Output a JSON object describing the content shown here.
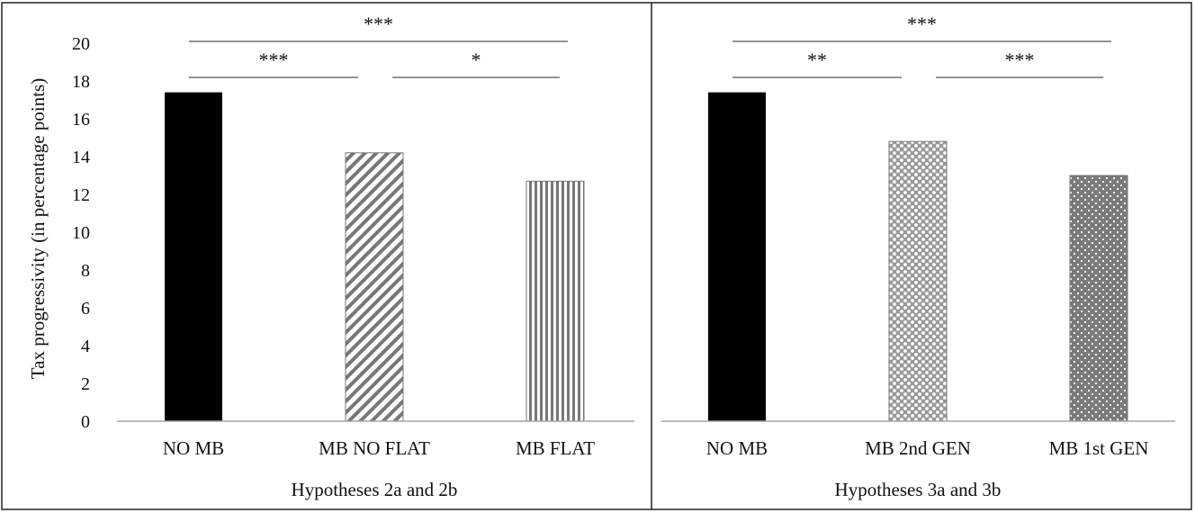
{
  "chart_data": {
    "type": "bar",
    "ylabel": "Tax progressivity (in percentage points)",
    "ylim": [
      0,
      20
    ],
    "yticks": [
      "0",
      "2",
      "4",
      "6",
      "8",
      "10",
      "12",
      "14",
      "16",
      "18",
      "20"
    ],
    "grid": false,
    "panels": [
      {
        "xlabel": "Hypotheses 2a and 2b",
        "categories": [
          "NO MB",
          "MB NO FLAT",
          "MB FLAT"
        ],
        "values": [
          17.4,
          14.2,
          12.7
        ],
        "fills": [
          "solid-black",
          "diagonal-stripes",
          "vertical-stripes"
        ],
        "significance": [
          {
            "from": 0,
            "to": 2,
            "label": "***"
          },
          {
            "from": 0,
            "to": 1,
            "label": "***"
          },
          {
            "from": 1,
            "to": 2,
            "label": "*"
          }
        ]
      },
      {
        "xlabel": "Hypotheses 3a and 3b",
        "categories": [
          "NO MB",
          "MB 2nd GEN",
          "MB 1st GEN"
        ],
        "values": [
          17.4,
          14.8,
          13.0
        ],
        "fills": [
          "solid-black",
          "checker-dots",
          "dotted"
        ],
        "significance": [
          {
            "from": 0,
            "to": 2,
            "label": "***"
          },
          {
            "from": 0,
            "to": 1,
            "label": "**"
          },
          {
            "from": 1,
            "to": 2,
            "label": "***"
          }
        ]
      }
    ]
  },
  "colors": {
    "bar_solid": "#000000",
    "pattern": "#777777",
    "axis": "#a6a6a6",
    "frame": "#222222"
  }
}
